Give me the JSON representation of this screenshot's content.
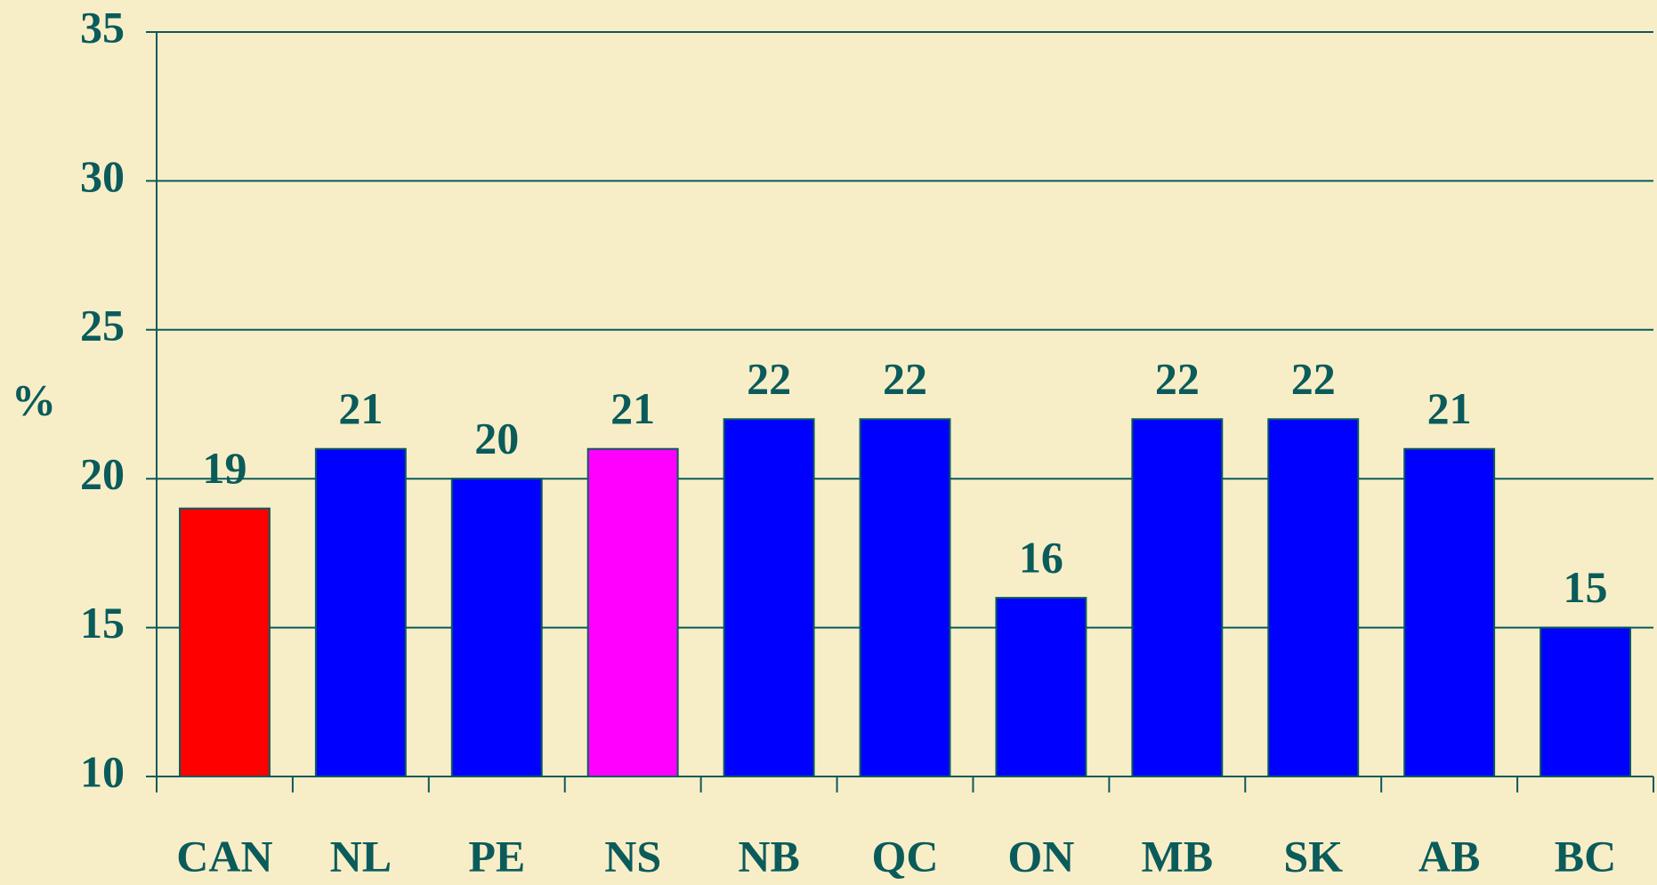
{
  "chart_data": {
    "type": "bar",
    "y_label": "%",
    "categories": [
      "CAN",
      "NL",
      "PE",
      "NS",
      "NB",
      "QC",
      "ON",
      "MB",
      "SK",
      "AB",
      "BC"
    ],
    "values": [
      19,
      21,
      20,
      21,
      22,
      22,
      16,
      22,
      22,
      21,
      15
    ],
    "colors": [
      "#ff0000",
      "#0000ff",
      "#0000ff",
      "#ff00ff",
      "#0000ff",
      "#0000ff",
      "#0000ff",
      "#0000ff",
      "#0000ff",
      "#0000ff",
      "#0000ff"
    ],
    "ylim": [
      10,
      35
    ],
    "yticks": [
      10,
      15,
      20,
      25,
      30,
      35
    ],
    "grid": true
  }
}
